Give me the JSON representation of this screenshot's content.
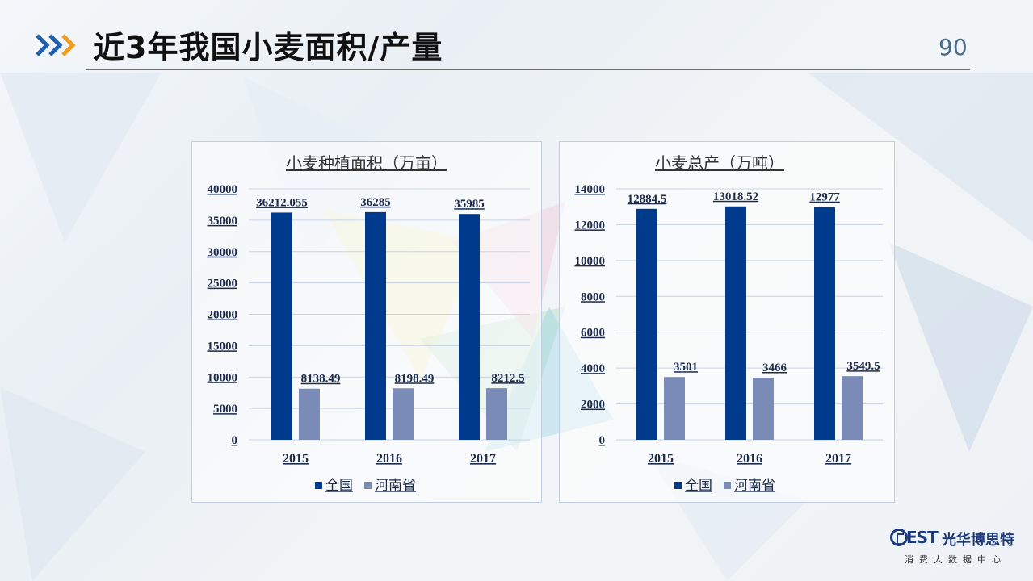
{
  "slide": {
    "title": "近3年我国小麦面积/产量",
    "page_number": "90"
  },
  "logo": {
    "letters": "EST",
    "name": "光华博思特",
    "subtitle": "消费大数据中心"
  },
  "colors": {
    "national": "#003a8c",
    "henan": "#7a8bb8",
    "accent_orange": "#f29a1a",
    "accent_blue": "#1f5fb0"
  },
  "icons": {
    "header": "chevrons-right-icon",
    "legend_marker": "square-icon"
  },
  "chart_data": [
    {
      "type": "bar",
      "title": "小麦种植面积（万亩）",
      "categories": [
        "2015",
        "2016",
        "2017"
      ],
      "series": [
        {
          "name": "全国",
          "values": [
            36212.055,
            36285,
            35985
          ],
          "labels": [
            "36212.055",
            "36285",
            "35985"
          ]
        },
        {
          "name": "河南省",
          "values": [
            8138.49,
            8198.49,
            8212.5
          ],
          "labels": [
            "8138.49",
            "8198.49",
            "8212.5"
          ]
        }
      ],
      "ylim": [
        0,
        40000
      ],
      "yticks": [
        "0",
        "5000",
        "10000",
        "15000",
        "20000",
        "25000",
        "30000",
        "35000",
        "40000"
      ],
      "grid": true,
      "legend": "bottom"
    },
    {
      "type": "bar",
      "title": "小麦总产（万吨）",
      "categories": [
        "2015",
        "2016",
        "2017"
      ],
      "series": [
        {
          "name": "全国",
          "values": [
            12884.5,
            13018.52,
            12977
          ],
          "labels": [
            "12884.5",
            "13018.52",
            "12977"
          ]
        },
        {
          "name": "河南省",
          "values": [
            3501,
            3466,
            3549.5
          ],
          "labels": [
            "3501",
            "3466",
            "3549.5"
          ]
        }
      ],
      "ylim": [
        0,
        14000
      ],
      "yticks": [
        "0",
        "2000",
        "4000",
        "6000",
        "8000",
        "10000",
        "12000",
        "14000"
      ],
      "grid": true,
      "legend": "bottom"
    }
  ]
}
